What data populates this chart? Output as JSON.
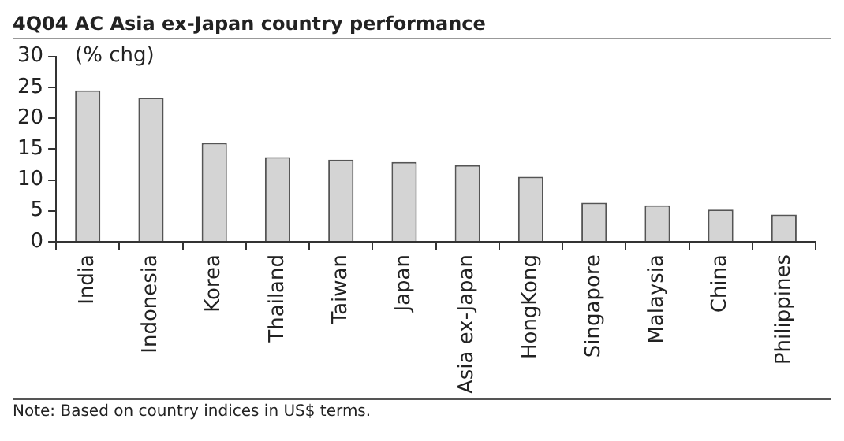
{
  "chart_data": {
    "type": "bar",
    "title": "4Q04 AC Asia ex-Japan country performance",
    "ylabel": "(% chg)",
    "categories": [
      "India",
      "Indonesia",
      "Korea",
      "Thailand",
      "Taiwan",
      "Japan",
      "Asia ex-Japan",
      "HongKong",
      "Singapore",
      "Malaysia",
      "China",
      "Philippines"
    ],
    "values": [
      24.5,
      23.3,
      16,
      13.7,
      13.3,
      12.9,
      12.4,
      10.5,
      6.3,
      5.9,
      5.2,
      4.4
    ],
    "color": "#d4d4d4",
    "ylim": [
      0,
      30
    ],
    "yticks": [
      0,
      5,
      10,
      15,
      20,
      25,
      30
    ],
    "grid": false,
    "legend": false,
    "annotations": [
      "Note: Based on country indices in US$ terms."
    ]
  }
}
